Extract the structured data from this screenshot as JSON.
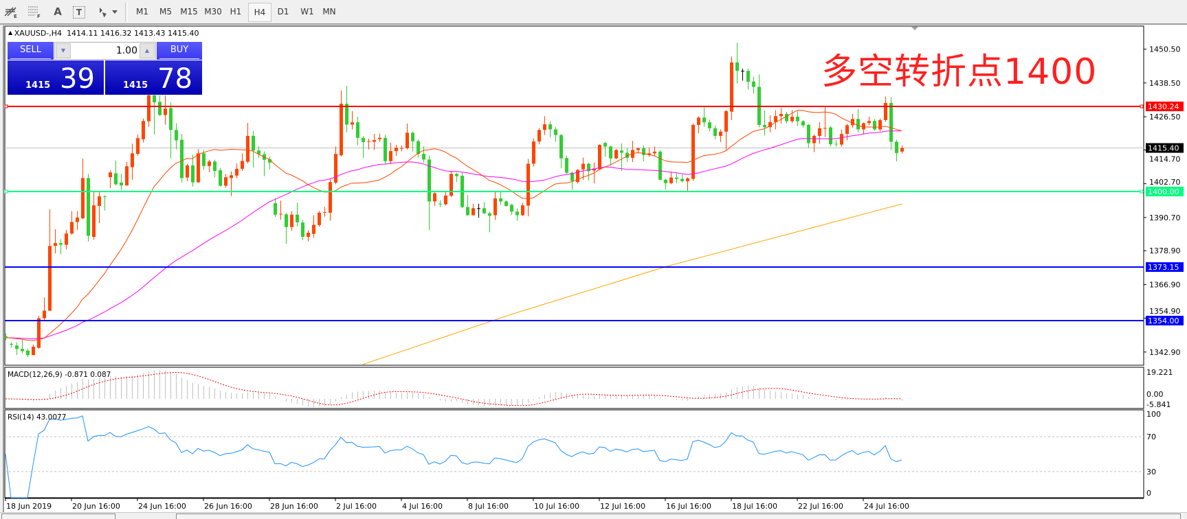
{
  "toolbar": {
    "tools": [
      {
        "icon": "fibonacci-expansion-icon"
      },
      {
        "icon": "fibonacci-fan-icon"
      },
      {
        "icon": "text-icon",
        "glyph": "A"
      },
      {
        "icon": "text-label-icon",
        "glyph": "T"
      },
      {
        "icon": "arrows-dropdown-icon"
      }
    ],
    "timeframes": [
      "M1",
      "M5",
      "M15",
      "M30",
      "H1",
      "H4",
      "D1",
      "W1",
      "MN"
    ],
    "active_timeframe": "H4"
  },
  "chart": {
    "symbol": "XAUUSD-,H4",
    "ohlc_readout": "1414.11 1416.32 1413.43 1415.40"
  },
  "trade_panel": {
    "sell_label": "SELL",
    "buy_label": "BUY",
    "lot_value": "1.00",
    "sell_price_prefix": "1415",
    "sell_price_pips": "39",
    "buy_price_prefix": "1415",
    "buy_price_pips": "78"
  },
  "annotation": "多空转折点1400",
  "chart_data": {
    "type": "candlestick",
    "colors": {
      "bull": "#ff4500",
      "bear": "#32cd32",
      "doji": "#000000",
      "ma_fast": "#ff4500",
      "ma_slow": "#ff00ff",
      "ma_long": "#ffa500"
    },
    "price_range": [
      1337.0,
      1458.0
    ],
    "price_ticks": [
      "1450.50",
      "1438.50",
      "1426.50",
      "1414.70",
      "1402.70",
      "1390.70",
      "1378.90",
      "1366.90",
      "1354.90",
      "1342.90"
    ],
    "current_price": {
      "value": 1415.4,
      "label": "1415.40",
      "color": "#000000"
    },
    "levels": [
      {
        "value": 1430.24,
        "label": "1430.24",
        "color": "#ff0000",
        "handles": true
      },
      {
        "value": 1400.0,
        "label": "1400.00",
        "color": "#00ff80",
        "handles": true
      },
      {
        "value": 1373.15,
        "label": "1373.15",
        "color": "#0000ff",
        "handles": false
      },
      {
        "value": 1354.0,
        "label": "1354.00",
        "color": "#0000ff",
        "handles": false
      }
    ],
    "x_labels": [
      {
        "bar": 0,
        "label": "18 Jun 2019"
      },
      {
        "bar": 12,
        "label": "20 Jun 16:00"
      },
      {
        "bar": 24,
        "label": "24 Jun 16:00"
      },
      {
        "bar": 36,
        "label": "26 Jun 16:00"
      },
      {
        "bar": 48,
        "label": "28 Jun 16:00"
      },
      {
        "bar": 60,
        "label": "2 Jul 16:00"
      },
      {
        "bar": 72,
        "label": "4 Jul 16:00"
      },
      {
        "bar": 84,
        "label": "8 Jul 16:00"
      },
      {
        "bar": 96,
        "label": "10 Jul 16:00"
      },
      {
        "bar": 108,
        "label": "12 Jul 16:00"
      },
      {
        "bar": 120,
        "label": "16 Jul 16:00"
      },
      {
        "bar": 132,
        "label": "18 Jul 16:00"
      },
      {
        "bar": 144,
        "label": "22 Jul 16:00"
      },
      {
        "bar": 156,
        "label": "24 Jul 16:00"
      }
    ],
    "long_ma_points": [
      [
        65,
        1338.5
      ],
      [
        92,
        1356.3
      ],
      [
        120,
        1373.2
      ],
      [
        163,
        1395.5
      ]
    ],
    "candles": [
      [
        1348.5,
        1349.5,
        1347.0,
        1348.0
      ],
      [
        1345.8,
        1346.4,
        1344.4,
        1345.5
      ],
      [
        1345.2,
        1346.4,
        1341.9,
        1344.0
      ],
      [
        1344.0,
        1347.2,
        1342.4,
        1343.2
      ],
      [
        1343.4,
        1344.0,
        1341.1,
        1341.8
      ],
      [
        1341.8,
        1345.6,
        1341.8,
        1344.8
      ],
      [
        1344.4,
        1355.8,
        1344.0,
        1354.9
      ],
      [
        1354.9,
        1362.3,
        1354.1,
        1357.6
      ],
      [
        1357.6,
        1393.6,
        1357.5,
        1380.6
      ],
      [
        1380.6,
        1386.5,
        1377.9,
        1381.6
      ],
      [
        1381.6,
        1383.0,
        1377.6,
        1381.0
      ],
      [
        1381.0,
        1386.3,
        1379.3,
        1385.0
      ],
      [
        1385.0,
        1393.0,
        1384.6,
        1389.1
      ],
      [
        1389.1,
        1393.0,
        1386.3,
        1390.7
      ],
      [
        1390.4,
        1411.6,
        1390.1,
        1404.7
      ],
      [
        1404.7,
        1406.2,
        1382.2,
        1384.2
      ],
      [
        1383.8,
        1400.1,
        1382.8,
        1395.0
      ],
      [
        1394.8,
        1399.7,
        1388.7,
        1398.2
      ],
      [
        1398.2,
        1398.6,
        1393.2,
        1398.0
      ],
      [
        1405.0,
        1407.4,
        1401.1,
        1406.7
      ],
      [
        1406.4,
        1410.9,
        1402.1,
        1402.5
      ],
      [
        1403.1,
        1406.2,
        1400.5,
        1402.1
      ],
      [
        1402.1,
        1410.4,
        1402.0,
        1408.9
      ],
      [
        1408.6,
        1417.0,
        1404.1,
        1413.5
      ],
      [
        1413.3,
        1420.2,
        1412.7,
        1418.9
      ],
      [
        1418.5,
        1425.9,
        1417.4,
        1425.0
      ],
      [
        1424.9,
        1436.0,
        1422.9,
        1434.1
      ],
      [
        1434.1,
        1436.0,
        1420.2,
        1431.6
      ],
      [
        1431.8,
        1434.1,
        1426.8,
        1427.1
      ],
      [
        1427.1,
        1434.1,
        1423.7,
        1429.4
      ],
      [
        1429.6,
        1431.5,
        1411.7,
        1421.8
      ],
      [
        1421.8,
        1424.2,
        1414.9,
        1418.1
      ],
      [
        1418.3,
        1420.4,
        1403.2,
        1404.7
      ],
      [
        1404.9,
        1409.8,
        1403.6,
        1409.2
      ],
      [
        1409.2,
        1413.1,
        1401.7,
        1403.2
      ],
      [
        1403.2,
        1415.0,
        1403.0,
        1413.5
      ],
      [
        1413.5,
        1414.7,
        1407.6,
        1409.0
      ],
      [
        1409.0,
        1411.2,
        1406.8,
        1410.6
      ],
      [
        1410.6,
        1411.2,
        1405.0,
        1407.2
      ],
      [
        1407.5,
        1408.3,
        1401.6,
        1402.0
      ],
      [
        1402.0,
        1406.1,
        1401.3,
        1405.0
      ],
      [
        1404.7,
        1407.1,
        1398.3,
        1405.7
      ],
      [
        1405.6,
        1409.9,
        1404.6,
        1408.0
      ],
      [
        1408.0,
        1413.5,
        1407.2,
        1410.8
      ],
      [
        1410.5,
        1424.3,
        1409.9,
        1419.7
      ],
      [
        1419.7,
        1421.4,
        1408.5,
        1414.5
      ],
      [
        1414.5,
        1416.0,
        1411.9,
        1413.2
      ],
      [
        1413.2,
        1414.2,
        1405.4,
        1411.2
      ],
      [
        1411.4,
        1412.4,
        1407.8,
        1410.2
      ],
      [
        1395.8,
        1397.6,
        1390.9,
        1391.7
      ],
      [
        1391.8,
        1396.7,
        1389.9,
        1392.0
      ],
      [
        1391.8,
        1392.3,
        1381.4,
        1387.3
      ],
      [
        1387.3,
        1393.0,
        1386.0,
        1391.7
      ],
      [
        1391.7,
        1396.0,
        1387.5,
        1389.0
      ],
      [
        1388.9,
        1389.9,
        1382.7,
        1383.8
      ],
      [
        1383.8,
        1386.2,
        1382.2,
        1385.3
      ],
      [
        1384.9,
        1391.5,
        1383.5,
        1388.1
      ],
      [
        1388.0,
        1393.0,
        1387.4,
        1392.4
      ],
      [
        1392.4,
        1394.5,
        1391.0,
        1392.6
      ],
      [
        1392.4,
        1404.3,
        1389.6,
        1403.3
      ],
      [
        1403.1,
        1415.9,
        1402.5,
        1413.3
      ],
      [
        1412.8,
        1435.9,
        1412.4,
        1431.1
      ],
      [
        1431.1,
        1437.5,
        1421.0,
        1423.7
      ],
      [
        1423.7,
        1428.5,
        1422.0,
        1424.5
      ],
      [
        1424.5,
        1426.5,
        1416.4,
        1419.0
      ],
      [
        1419.0,
        1419.6,
        1411.9,
        1417.5
      ],
      [
        1417.7,
        1418.7,
        1414.9,
        1417.8
      ],
      [
        1417.6,
        1420.4,
        1414.7,
        1418.2
      ],
      [
        1418.5,
        1420.5,
        1417.5,
        1419.0
      ],
      [
        1419.0,
        1420.0,
        1409.8,
        1410.7
      ],
      [
        1410.7,
        1417.3,
        1409.6,
        1414.3
      ],
      [
        1414.3,
        1416.5,
        1412.5,
        1415.5
      ],
      [
        1415.3,
        1416.3,
        1414.2,
        1415.4
      ],
      [
        1415.3,
        1424.1,
        1414.9,
        1420.8
      ],
      [
        1420.8,
        1421.2,
        1414.2,
        1417.8
      ],
      [
        1417.8,
        1418.4,
        1412.0,
        1413.3
      ],
      [
        1413.3,
        1416.0,
        1410.2,
        1411.3
      ],
      [
        1411.3,
        1412.8,
        1386.3,
        1396.4
      ],
      [
        1396.4,
        1399.7,
        1394.8,
        1399.3
      ],
      [
        1395.6,
        1396.8,
        1394.4,
        1395.4
      ],
      [
        1395.4,
        1399.7,
        1394.9,
        1398.5
      ],
      [
        1398.4,
        1407.2,
        1398.0,
        1406.2
      ],
      [
        1406.2,
        1406.6,
        1403.3,
        1405.4
      ],
      [
        1405.5,
        1406.6,
        1394.0,
        1394.4
      ],
      [
        1394.4,
        1398.6,
        1391.4,
        1391.5
      ],
      [
        1391.5,
        1395.6,
        1391.4,
        1394.0
      ],
      [
        1394.0,
        1395.6,
        1390.6,
        1394.0
      ],
      [
        1394.0,
        1396.2,
        1391.9,
        1392.2
      ],
      [
        1392.2,
        1392.8,
        1385.4,
        1391.3
      ],
      [
        1391.5,
        1399.7,
        1389.9,
        1397.5
      ],
      [
        1397.5,
        1399.7,
        1395.1,
        1396.4
      ],
      [
        1396.4,
        1396.8,
        1394.6,
        1394.8
      ],
      [
        1395.2,
        1395.6,
        1391.5,
        1392.8
      ],
      [
        1392.8,
        1394.0,
        1389.5,
        1391.5
      ],
      [
        1391.5,
        1396.0,
        1391.3,
        1395.0
      ],
      [
        1394.9,
        1411.5,
        1391.1,
        1409.8
      ],
      [
        1409.8,
        1418.8,
        1408.8,
        1417.7
      ],
      [
        1417.7,
        1422.4,
        1416.7,
        1421.8
      ],
      [
        1421.8,
        1426.7,
        1420.0,
        1423.8
      ],
      [
        1423.8,
        1424.9,
        1419.2,
        1422.0
      ],
      [
        1422.0,
        1422.8,
        1417.6,
        1420.0
      ],
      [
        1420.0,
        1420.4,
        1408.2,
        1411.7
      ],
      [
        1411.8,
        1412.7,
        1406.2,
        1406.6
      ],
      [
        1406.6,
        1407.0,
        1400.5,
        1403.7
      ],
      [
        1403.3,
        1407.9,
        1402.8,
        1407.6
      ],
      [
        1407.8,
        1412.0,
        1404.1,
        1409.8
      ],
      [
        1409.8,
        1410.2,
        1403.9,
        1407.2
      ],
      [
        1407.4,
        1410.2,
        1402.8,
        1408.1
      ],
      [
        1407.8,
        1416.7,
        1407.6,
        1416.5
      ],
      [
        1417.2,
        1417.6,
        1412.3,
        1415.9
      ],
      [
        1415.9,
        1416.3,
        1409.0,
        1411.7
      ],
      [
        1411.7,
        1415.1,
        1411.4,
        1414.7
      ],
      [
        1414.5,
        1417.0,
        1407.2,
        1413.7
      ],
      [
        1413.7,
        1415.3,
        1410.4,
        1411.9
      ],
      [
        1411.9,
        1417.9,
        1410.4,
        1414.7
      ],
      [
        1414.7,
        1415.5,
        1413.5,
        1415.3
      ],
      [
        1415.3,
        1416.3,
        1410.6,
        1412.9
      ],
      [
        1412.9,
        1415.5,
        1412.3,
        1413.5
      ],
      [
        1413.5,
        1415.9,
        1412.5,
        1414.1
      ],
      [
        1414.1,
        1414.7,
        1403.9,
        1404.1
      ],
      [
        1404.1,
        1404.5,
        1400.7,
        1402.9
      ],
      [
        1402.9,
        1407.0,
        1402.5,
        1404.9
      ],
      [
        1404.9,
        1406.6,
        1402.9,
        1404.4
      ],
      [
        1404.4,
        1406.0,
        1403.2,
        1403.6
      ],
      [
        1403.6,
        1405.0,
        1399.8,
        1404.6
      ],
      [
        1404.4,
        1424.1,
        1403.7,
        1423.6
      ],
      [
        1423.6,
        1426.6,
        1420.6,
        1426.2
      ],
      [
        1426.2,
        1429.9,
        1422.9,
        1424.5
      ],
      [
        1424.5,
        1425.5,
        1421.3,
        1422.4
      ],
      [
        1422.4,
        1423.4,
        1418.5,
        1419.7
      ],
      [
        1419.7,
        1422.0,
        1417.5,
        1421.2
      ],
      [
        1421.2,
        1428.9,
        1414.7,
        1428.5
      ],
      [
        1428.3,
        1447.9,
        1425.3,
        1445.8
      ],
      [
        1445.8,
        1452.8,
        1438.3,
        1442.8
      ],
      [
        1442.8,
        1443.6,
        1439.3,
        1442.8
      ],
      [
        1442.8,
        1443.6,
        1436.1,
        1438.9
      ],
      [
        1439.0,
        1440.7,
        1434.8,
        1437.1
      ],
      [
        1437.1,
        1441.5,
        1422.7,
        1423.6
      ],
      [
        1423.6,
        1428.7,
        1419.8,
        1422.8
      ],
      [
        1422.8,
        1427.0,
        1421.0,
        1424.6
      ],
      [
        1424.6,
        1428.8,
        1422.0,
        1426.7
      ],
      [
        1426.7,
        1429.6,
        1424.1,
        1427.5
      ],
      [
        1427.5,
        1428.2,
        1424.1,
        1424.9
      ],
      [
        1424.9,
        1428.9,
        1424.3,
        1426.5
      ],
      [
        1426.5,
        1428.5,
        1423.2,
        1424.9
      ],
      [
        1424.9,
        1425.3,
        1422.6,
        1423.4
      ],
      [
        1423.6,
        1424.0,
        1415.5,
        1417.1
      ],
      [
        1417.1,
        1420.2,
        1413.9,
        1419.7
      ],
      [
        1419.7,
        1424.6,
        1416.9,
        1422.4
      ],
      [
        1422.4,
        1430.2,
        1419.3,
        1422.5
      ],
      [
        1422.7,
        1423.2,
        1415.9,
        1416.7
      ],
      [
        1416.9,
        1418.2,
        1415.9,
        1416.8
      ],
      [
        1416.6,
        1422.0,
        1415.9,
        1420.4
      ],
      [
        1420.4,
        1424.0,
        1418.1,
        1423.5
      ],
      [
        1423.5,
        1427.5,
        1422.6,
        1425.7
      ],
      [
        1425.7,
        1429.2,
        1421.0,
        1422.0
      ],
      [
        1422.0,
        1424.5,
        1420.2,
        1424.2
      ],
      [
        1424.2,
        1426.5,
        1423.5,
        1425.0
      ],
      [
        1425.0,
        1425.7,
        1421.6,
        1422.0
      ],
      [
        1422.0,
        1425.9,
        1421.4,
        1425.3
      ],
      [
        1425.3,
        1433.7,
        1424.7,
        1431.4
      ],
      [
        1431.4,
        1433.4,
        1414.7,
        1417.6
      ],
      [
        1417.6,
        1418.3,
        1410.6,
        1413.6
      ],
      [
        1414.11,
        1416.32,
        1413.43,
        1415.4
      ]
    ],
    "macd": {
      "label": "MACD(12,26,9)",
      "main_value": "-0.871",
      "signal_value": "0.087",
      "axis_max": 19.221,
      "axis_min": -5.841,
      "axis_labels": [
        "19.221",
        "0.00",
        "-5.841"
      ],
      "histogram_color": "#c0c0c0",
      "signal_color": "#ff0000"
    },
    "rsi": {
      "label": "RSI(14)",
      "value": "43.0077",
      "levels": [
        70,
        30
      ],
      "axis_labels": [
        "100",
        "70",
        "30",
        "0"
      ],
      "color": "#1e90ff"
    }
  }
}
